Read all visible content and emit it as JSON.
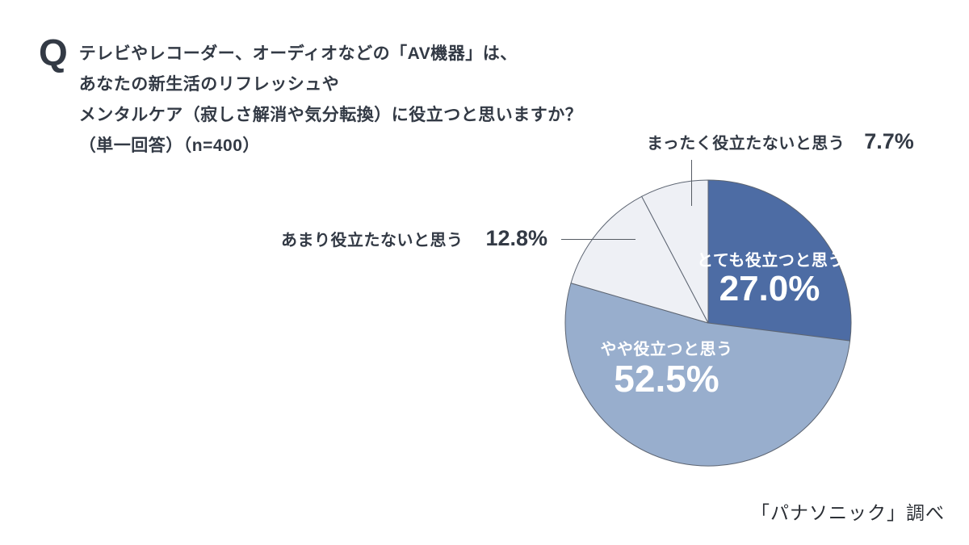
{
  "question": {
    "prefix": "Q",
    "lines": [
      "テレビやレコーダー、オーディオなどの「AV機器」は、",
      "あなたの新生活のリフレッシュや",
      "メンタルケア（寂しさ解消や気分転換）に役立つと思いますか？",
      "（単一回答）（n=400）"
    ]
  },
  "chart_data": {
    "type": "pie",
    "title": "テレビやレコーダー、オーディオなどの「AV機器」は、あなたの新生活のリフレッシュやメンタルケア（寂しさ解消や気分転換）に役立つと思いますか？",
    "answer_type": "単一回答",
    "n": 400,
    "start_angle": "top",
    "direction": "clockwise",
    "segments": [
      {
        "label": "とても役立つと思う",
        "value": 27.0,
        "display": "27.0%",
        "color": "#4d6ca4",
        "label_placement": "inside"
      },
      {
        "label": "やや役立つと思う",
        "value": 52.5,
        "display": "52.5%",
        "color": "#98aecd",
        "label_placement": "inside"
      },
      {
        "label": "あまり役立たないと思う",
        "value": 12.8,
        "display": "12.8%",
        "color": "#eef0f5",
        "label_placement": "outside-left"
      },
      {
        "label": "まったく役立たないと思う",
        "value": 7.7,
        "display": "7.7%",
        "color": "#eef0f5",
        "label_placement": "outside-top"
      }
    ],
    "stroke_color": "#5d6572",
    "inside_label_color": "#ffffff",
    "outside_label_color": "#333a45",
    "legend_position": "none",
    "grid": false
  },
  "footer": {
    "source": "「パナソニック」調べ"
  }
}
